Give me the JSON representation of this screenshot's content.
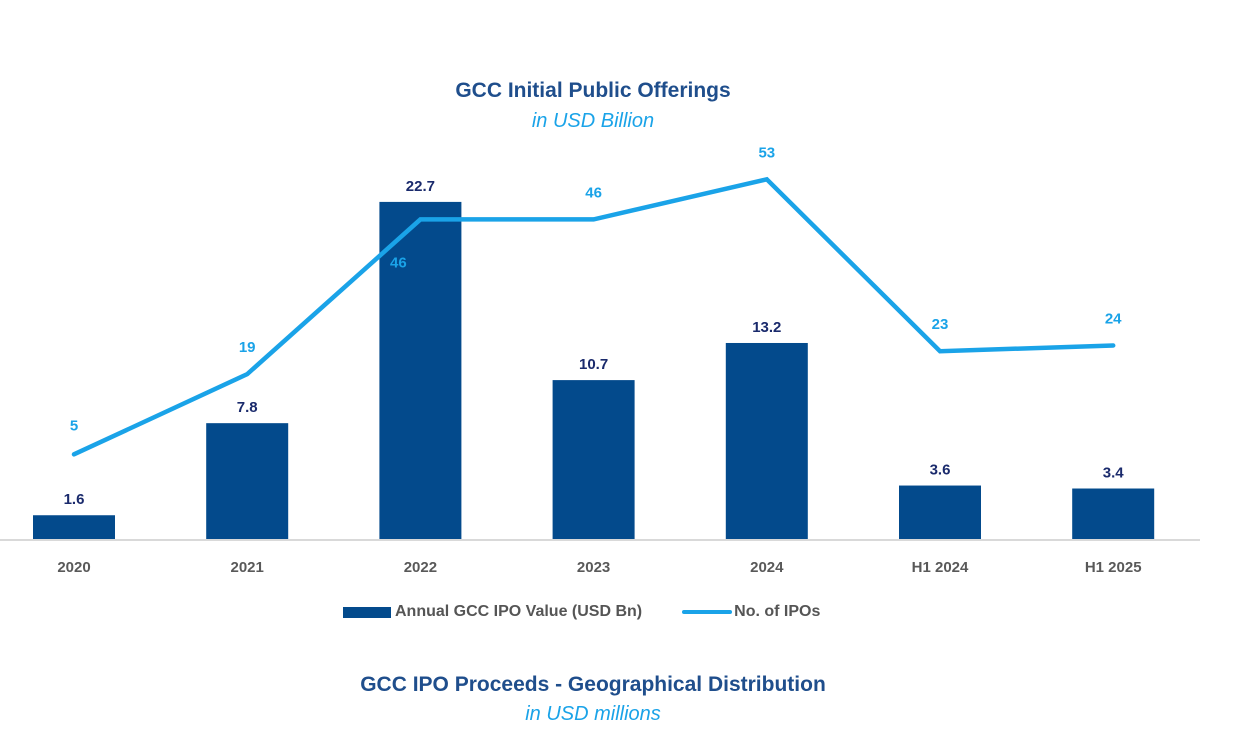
{
  "chart_data": {
    "type": "bar+line",
    "title": "GCC Initial Public Offerings",
    "subtitle": "in USD Billion",
    "categories": [
      "2020",
      "2021",
      "2022",
      "2023",
      "2024",
      "H1 2024",
      "H1 2025"
    ],
    "series": [
      {
        "name": "Annual GCC IPO Value (USD Bn)",
        "type": "bar",
        "color": "#034a8c",
        "label_color": "#1a2a6c",
        "values": [
          1.6,
          7.8,
          22.7,
          10.7,
          13.2,
          3.6,
          3.4
        ],
        "labels": [
          "1.6",
          "7.8",
          "22.7",
          "10.7",
          "13.2",
          "3.6",
          "3.4"
        ]
      },
      {
        "name": "No. of IPOs",
        "type": "line",
        "color": "#1aa3e8",
        "label_color": "#1aa3e8",
        "values": [
          5,
          19,
          46,
          46,
          53,
          23,
          24
        ],
        "labels": [
          "5",
          "19",
          "46",
          "46",
          "53",
          "23",
          "24"
        ]
      }
    ],
    "xlabel": "",
    "ylabel": "",
    "grid": false,
    "legend": "bottom-center",
    "axis_color": "#d9d9d9",
    "tick_label_color": "#595959"
  },
  "next_section": {
    "title": "GCC IPO Proceeds - Geographical Distribution",
    "subtitle": "in USD millions"
  }
}
